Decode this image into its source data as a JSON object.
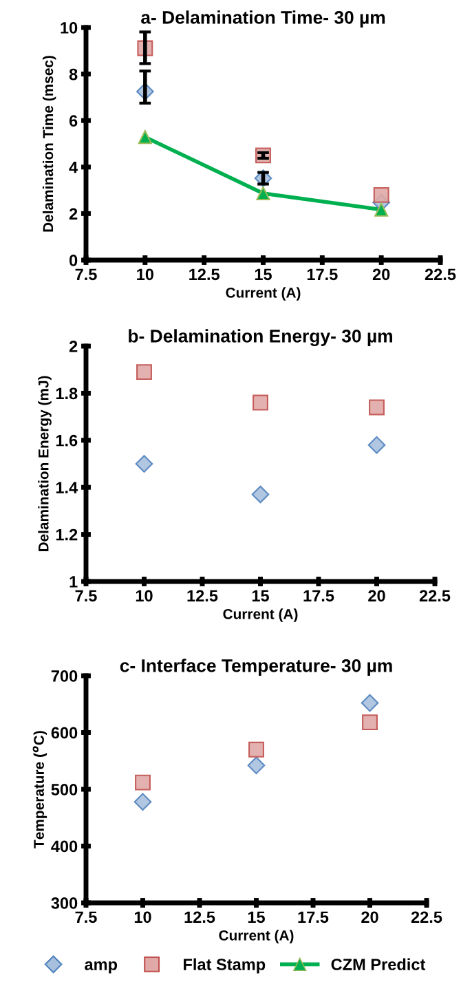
{
  "chart_data": [
    {
      "type": "scatter",
      "title": "a- Delamination Time- 30 µm",
      "xlabel": "Current (A)",
      "ylabel": "Delamination Time (msec)",
      "xlim": [
        7.5,
        22.5
      ],
      "xticks": [
        7.5,
        10,
        12.5,
        15,
        17.5,
        20,
        22.5
      ],
      "ylim": [
        0,
        10
      ],
      "yticks": [
        0,
        2,
        4,
        6,
        8,
        10
      ],
      "grid": false,
      "legend": "bottom",
      "series": [
        {
          "name": "amp",
          "type": "scatter",
          "marker": "diamond",
          "color": "#4f81bd",
          "x": [
            10,
            15,
            20
          ],
          "values": [
            7.25,
            3.52,
            2.48
          ],
          "errors": [
            [
              6.75,
              8.13
            ],
            [
              3.27,
              3.77
            ],
            null
          ]
        },
        {
          "name": "Flat Stamp",
          "type": "scatter",
          "marker": "square",
          "color": "#c0504d",
          "x": [
            10,
            15,
            20
          ],
          "values": [
            9.11,
            4.5,
            2.8
          ],
          "errors": [
            [
              8.45,
              9.81
            ],
            [
              4.38,
              4.62
            ],
            null
          ]
        },
        {
          "name": "CZM Predict",
          "type": "line",
          "marker": "triangle",
          "color": "#00b050",
          "x": [
            10,
            15,
            20
          ],
          "values": [
            5.29,
            2.87,
            2.17
          ]
        }
      ]
    },
    {
      "type": "scatter",
      "title": "b- Delamination Energy- 30 µm",
      "xlabel": "Current (A)",
      "ylabel": "Delamination Energy (mJ)",
      "xlim": [
        7.5,
        22.5
      ],
      "xticks": [
        7.5,
        10,
        12.5,
        15,
        17.5,
        20,
        22.5
      ],
      "ylim": [
        1,
        2
      ],
      "yticks": [
        1,
        1.2,
        1.4,
        1.6,
        1.8,
        2
      ],
      "grid": false,
      "series": [
        {
          "type": "scatter",
          "marker": "diamond",
          "color": "#4f81bd",
          "x": [
            10,
            15,
            20
          ],
          "values": [
            1.5,
            1.37,
            1.58
          ]
        },
        {
          "type": "scatter",
          "marker": "square",
          "color": "#c0504d",
          "x": [
            10,
            15,
            20
          ],
          "values": [
            1.89,
            1.76,
            1.74
          ]
        }
      ]
    },
    {
      "type": "scatter",
      "title": "c- Interface Temperature- 30 µm",
      "xlabel": "Current (A)",
      "ylabel": "Temperature ($^{o}$C)",
      "xlim": [
        7.5,
        22.5
      ],
      "xticks": [
        7.5,
        10,
        12.5,
        15,
        17.5,
        20,
        22.5
      ],
      "ylim": [
        300,
        700
      ],
      "yticks": [
        300,
        400,
        500,
        600,
        700
      ],
      "grid": false,
      "series": [
        {
          "type": "scatter",
          "marker": "diamond",
          "color": "#4f81bd",
          "x": [
            10,
            15,
            20
          ],
          "values": [
            478,
            542,
            652
          ]
        },
        {
          "type": "scatter",
          "marker": "square",
          "color": "#c0504d",
          "x": [
            10,
            15,
            20
          ],
          "values": [
            512,
            570,
            618
          ]
        }
      ]
    }
  ]
}
